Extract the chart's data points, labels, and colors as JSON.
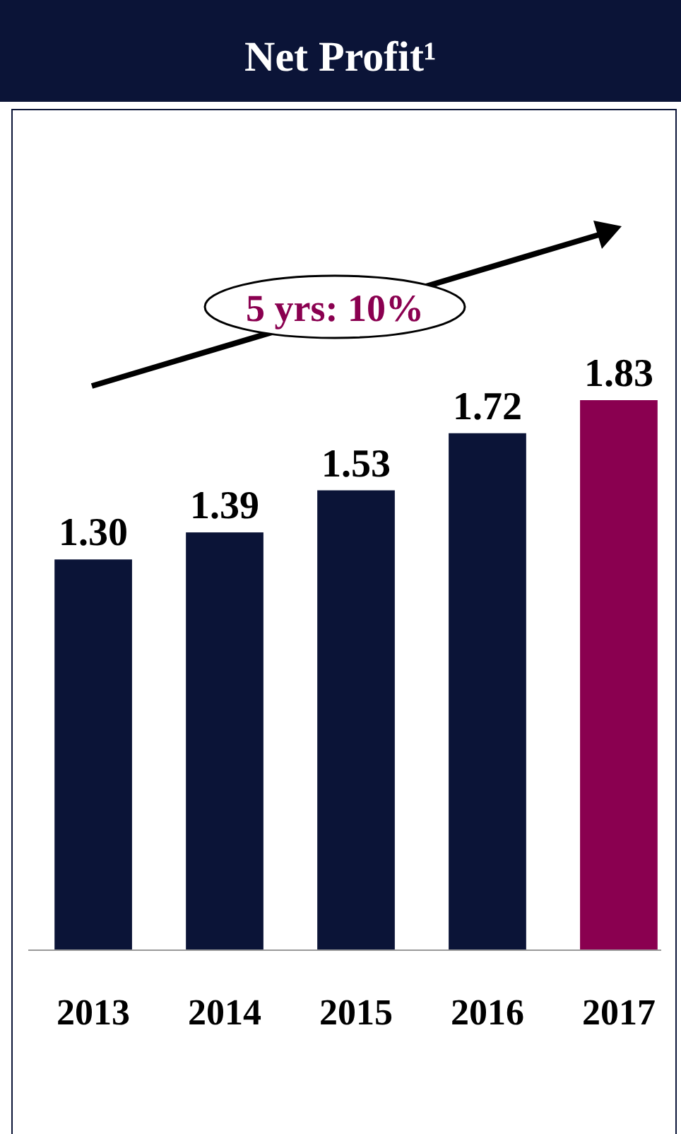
{
  "chart_data": {
    "type": "bar",
    "title": "Net Profit¹",
    "categories": [
      "2013",
      "2014",
      "2015",
      "2016",
      "2017"
    ],
    "values": [
      1.3,
      1.39,
      1.53,
      1.72,
      1.83
    ],
    "colors": [
      "#0b1437",
      "#0b1437",
      "#0b1437",
      "#0b1437",
      "#8a0050"
    ],
    "value_labels": [
      "1.30",
      "1.39",
      "1.53",
      "1.72",
      "1.83"
    ],
    "annotations": [
      "5 yrs: 10%"
    ]
  }
}
